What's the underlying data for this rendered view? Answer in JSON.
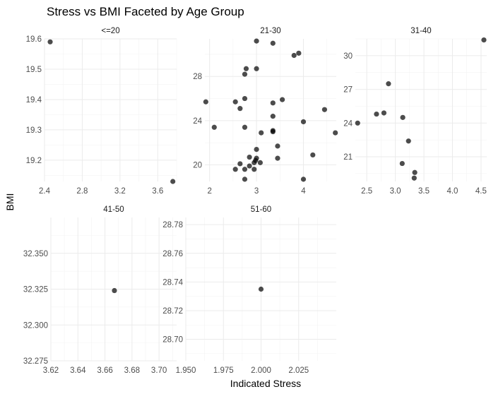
{
  "chart_data": {
    "type": "scatter",
    "title": "Stress vs BMI Faceted by Age Group",
    "xlabel": "Indicated Stress",
    "ylabel": "BMI",
    "grid": true,
    "facets": [
      {
        "name": "<=20",
        "xlim": [
          2.4,
          3.8
        ],
        "ylim": [
          19.13,
          19.6
        ],
        "x_ticks": [
          "2.4",
          "2.8",
          "3.2",
          "3.6"
        ],
        "y_ticks": [
          "19.2",
          "19.3",
          "19.4",
          "19.5",
          "19.6"
        ],
        "points": [
          [
            2.46,
            19.59
          ],
          [
            3.76,
            19.13
          ]
        ]
      },
      {
        "name": "21-30",
        "xlim": [
          1.9,
          4.7
        ],
        "ylim": [
          18.5,
          31.4
        ],
        "x_ticks": [
          "2",
          "3",
          "4"
        ],
        "y_ticks": [
          "20",
          "24",
          "28"
        ],
        "points": [
          [
            1.92,
            25.7
          ],
          [
            2.1,
            23.4
          ],
          [
            2.55,
            19.6
          ],
          [
            2.55,
            25.7
          ],
          [
            2.65,
            20.1
          ],
          [
            2.65,
            25.1
          ],
          [
            2.75,
            18.7
          ],
          [
            2.75,
            19.6
          ],
          [
            2.75,
            23.4
          ],
          [
            2.75,
            26.0
          ],
          [
            2.75,
            28.2
          ],
          [
            2.78,
            28.7
          ],
          [
            2.85,
            19.9
          ],
          [
            2.85,
            20.7
          ],
          [
            2.95,
            19.6
          ],
          [
            2.95,
            20.2
          ],
          [
            2.98,
            20.4
          ],
          [
            3.0,
            20.6
          ],
          [
            3.0,
            21.4
          ],
          [
            3.0,
            28.7
          ],
          [
            3.0,
            31.2
          ],
          [
            3.08,
            20.2
          ],
          [
            3.1,
            22.9
          ],
          [
            3.35,
            23.0
          ],
          [
            3.35,
            23.1
          ],
          [
            3.35,
            24.4
          ],
          [
            3.35,
            25.6
          ],
          [
            3.35,
            31.0
          ],
          [
            3.45,
            20.6
          ],
          [
            3.45,
            21.7
          ],
          [
            3.55,
            25.9
          ],
          [
            3.8,
            29.9
          ],
          [
            3.9,
            30.1
          ],
          [
            4.0,
            18.7
          ],
          [
            4.0,
            23.9
          ],
          [
            4.2,
            20.9
          ],
          [
            4.45,
            25.0
          ],
          [
            4.68,
            22.9
          ]
        ]
      },
      {
        "name": "31-40",
        "xlim": [
          2.3,
          4.6
        ],
        "ylim": [
          18.8,
          31.5
        ],
        "x_ticks": [
          "2.5",
          "3.0",
          "3.5",
          "4.0",
          "4.5"
        ],
        "y_ticks": [
          "21",
          "24",
          "27",
          "30"
        ],
        "points": [
          [
            2.34,
            24.0
          ],
          [
            2.67,
            24.8
          ],
          [
            2.8,
            24.9
          ],
          [
            2.88,
            27.5
          ],
          [
            3.12,
            20.4
          ],
          [
            3.13,
            24.5
          ],
          [
            3.23,
            22.4
          ],
          [
            3.33,
            19.1
          ],
          [
            3.34,
            19.6
          ],
          [
            4.55,
            31.4
          ]
        ]
      },
      {
        "name": "41-50",
        "xlim": [
          3.62,
          3.713
        ],
        "ylim": [
          32.275,
          32.375
        ],
        "x_ticks": [
          "3.62",
          "3.64",
          "3.66",
          "3.68",
          "3.70"
        ],
        "y_ticks": [
          "32.275",
          "32.300",
          "32.325",
          "32.350"
        ],
        "points": [
          [
            3.667,
            32.324
          ]
        ]
      },
      {
        "name": "51-60",
        "xlim": [
          1.95,
          2.05
        ],
        "ylim": [
          28.685,
          28.785
        ],
        "x_ticks": [
          "1.950",
          "1.975",
          "2.000",
          "2.025"
        ],
        "y_ticks": [
          "28.70",
          "28.72",
          "28.74",
          "28.76",
          "28.78"
        ],
        "points": [
          [
            2.0,
            28.735
          ]
        ]
      }
    ]
  }
}
